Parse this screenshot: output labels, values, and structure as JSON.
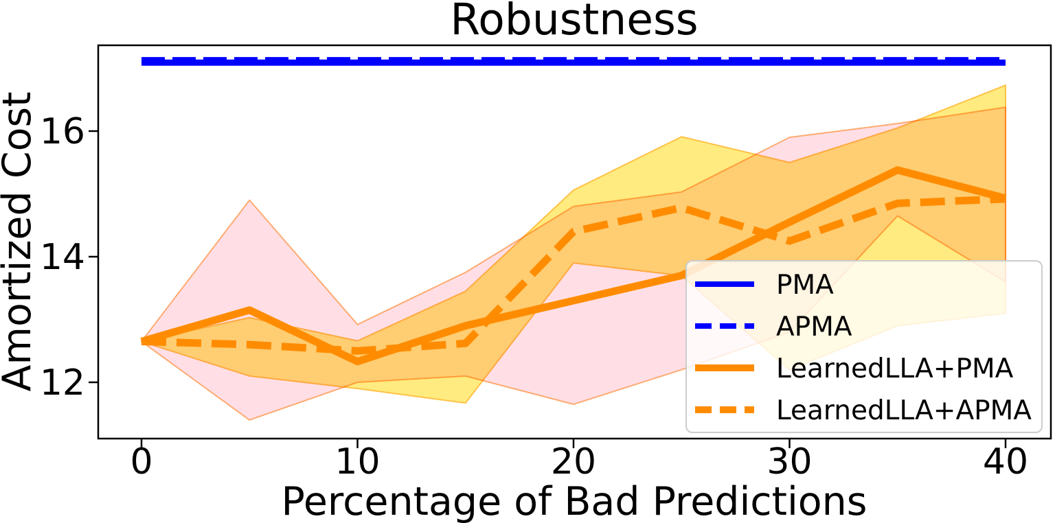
{
  "chart_data": {
    "type": "line",
    "title": "Robustness",
    "xlabel": "Percentage of Bad Predictions",
    "ylabel": "Amortized Cost",
    "x": [
      0,
      5,
      10,
      15,
      20,
      25,
      30,
      35,
      40
    ],
    "xticks": [
      0,
      10,
      20,
      30,
      40
    ],
    "yticks": [
      12,
      14,
      16
    ],
    "xlim": [
      -2,
      42
    ],
    "ylim": [
      11.1,
      17.37
    ],
    "grid": false,
    "legend_position": "lower right",
    "series": [
      {
        "name": "PMA",
        "color": "#0000ff",
        "line_style": "solid",
        "line_width": 9,
        "values": [
          17.09,
          17.09,
          17.09,
          17.09,
          17.09,
          17.09,
          17.09,
          17.09,
          17.09
        ]
      },
      {
        "name": "APMA",
        "color": "#0000ff",
        "line_style": "dashed",
        "line_width": 9,
        "values": [
          17.13,
          17.13,
          17.13,
          17.13,
          17.13,
          17.13,
          17.13,
          17.13,
          17.13
        ]
      },
      {
        "name": "LearnedLLA+PMA",
        "color": "#ff8c00",
        "line_style": "solid",
        "line_width": 11,
        "values": [
          12.65,
          13.15,
          12.33,
          12.9,
          13.3,
          13.7,
          14.55,
          15.38,
          14.93
        ],
        "band": {
          "fill": "#ffc0cb",
          "edge": "#ff9f5a",
          "upper": [
            12.65,
            14.9,
            12.92,
            13.75,
            14.8,
            15.03,
            15.9,
            16.12,
            16.38
          ],
          "lower": [
            12.65,
            11.4,
            12.0,
            12.1,
            11.65,
            12.2,
            12.8,
            14.65,
            13.6
          ]
        }
      },
      {
        "name": "LearnedLLA+APMA",
        "color": "#ff8c00",
        "line_style": "dashed",
        "line_width": 11,
        "values": [
          12.65,
          12.6,
          12.5,
          12.62,
          14.4,
          14.78,
          14.25,
          14.85,
          14.92
        ],
        "band": {
          "fill": "#ffd700",
          "edge": "#ffb833",
          "upper": [
            12.65,
            13.03,
            12.66,
            13.45,
            15.06,
            15.91,
            15.5,
            16.05,
            16.73
          ],
          "lower": [
            12.65,
            12.1,
            11.9,
            11.67,
            13.9,
            13.7,
            12.2,
            12.9,
            13.1
          ]
        }
      }
    ],
    "legend": {
      "entries": [
        "PMA",
        "APMA",
        "LearnedLLA+PMA",
        "LearnedLLA+APMA"
      ]
    }
  }
}
